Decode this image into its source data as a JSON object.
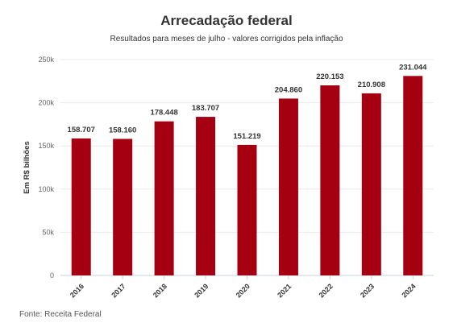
{
  "chart_data": {
    "type": "bar",
    "title": "Arrecadação federal",
    "subtitle": "Resultados para meses de julho - valores corrigidos pela inflação",
    "ylabel": "Em R$ bilhões",
    "xlabel": "",
    "categories": [
      "2016",
      "2017",
      "2018",
      "2019",
      "2020",
      "2021",
      "2022",
      "2023",
      "2024"
    ],
    "values": [
      158.707,
      158.16,
      178.448,
      183.707,
      151.219,
      204.86,
      220.153,
      210.908,
      231.044
    ],
    "data_labels": [
      "158.707",
      "158.160",
      "178.448",
      "183.707",
      "151.219",
      "204.860",
      "220.153",
      "210.908",
      "231.044"
    ],
    "ylim": [
      0,
      250
    ],
    "yticks": [
      0,
      50,
      100,
      150,
      200,
      250
    ],
    "ytick_labels": [
      "0",
      "50k",
      "100k",
      "150k",
      "200k",
      "250k"
    ],
    "grid": true,
    "bar_color": "#a50011",
    "source": "Fonte: Receita Federal"
  }
}
